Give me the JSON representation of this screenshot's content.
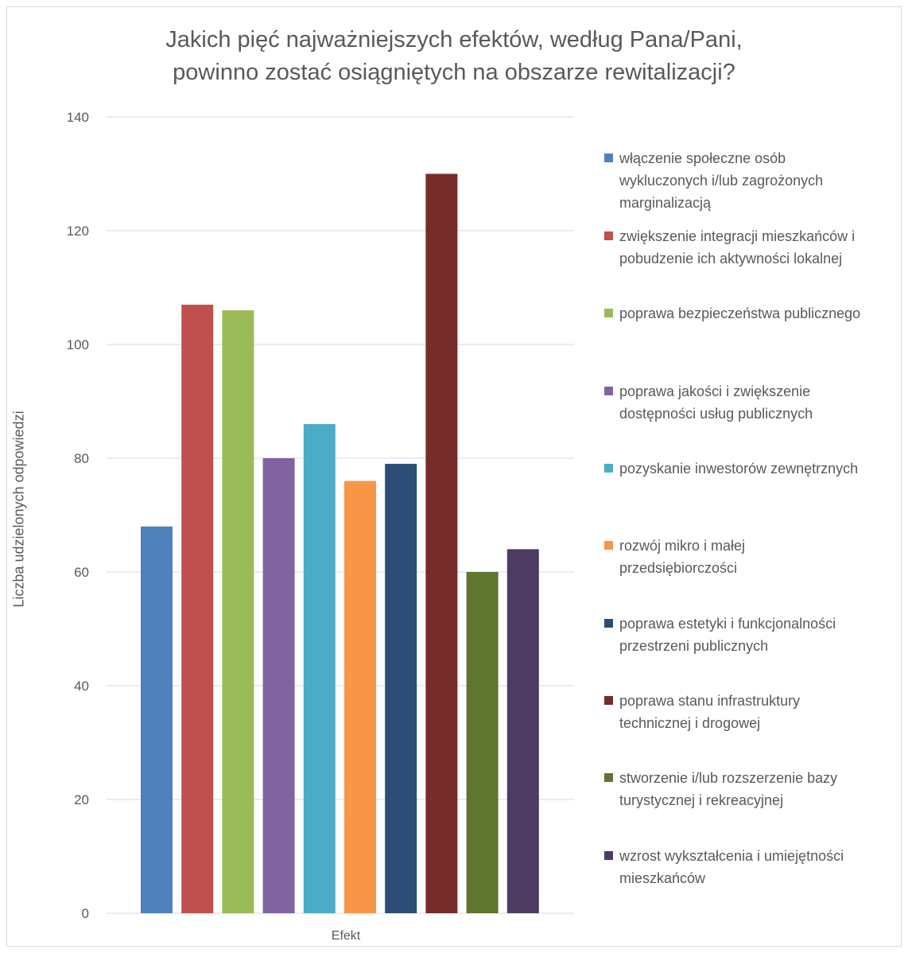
{
  "chart_data": {
    "type": "bar",
    "title_lines": [
      "Jakich pięć najważniejszych efektów, według Pana/Pani,",
      "powinno zostać osiągniętych na obszarze rewitalizacji?"
    ],
    "xlabel": "Efekt",
    "ylabel": "Liczba udzielonych odpowiedzi",
    "ylim": [
      0,
      140
    ],
    "yticks": [
      0,
      20,
      40,
      60,
      80,
      100,
      120,
      140
    ],
    "grid": true,
    "legend_position": "right",
    "series": [
      {
        "name": "włączenie społeczne osób wykluczonych i/lub zagrożonych marginalizacją",
        "value": 68,
        "color": "#4f81bd"
      },
      {
        "name": "zwiększenie integracji mieszkańców i pobudzenie ich aktywności lokalnej",
        "value": 107,
        "color": "#c0504d"
      },
      {
        "name": "poprawa bezpieczeństwa publicznego",
        "value": 106,
        "color": "#9bbb59"
      },
      {
        "name": "poprawa jakości i zwiększenie dostępności usług publicznych",
        "value": 80,
        "color": "#8064a2"
      },
      {
        "name": "pozyskanie inwestorów zewnętrznych",
        "value": 86,
        "color": "#4bacc6"
      },
      {
        "name": "rozwój mikro i małej przedsiębiorczości",
        "value": 76,
        "color": "#f79646"
      },
      {
        "name": "poprawa estetyki i funkcjonalności przestrzeni publicznych",
        "value": 79,
        "color": "#2c4d75"
      },
      {
        "name": "poprawa stanu infrastruktury technicznej i drogowej",
        "value": 130,
        "color": "#772c2a"
      },
      {
        "name": "stworzenie i/lub rozszerzenie bazy turystycznej i rekreacyjnej",
        "value": 60,
        "color": "#5f7530"
      },
      {
        "name": "wzrost wykształcenia i umiejętności mieszkańców",
        "value": 64,
        "color": "#4d3b62"
      }
    ],
    "legend_lines": [
      [
        "włączenie społeczne osób",
        "wykluczonych i/lub zagrożonych",
        "marginalizacją"
      ],
      [
        "zwiększenie integracji mieszkańców i",
        "pobudzenie ich aktywności lokalnej"
      ],
      [
        "poprawa bezpieczeństwa publicznego"
      ],
      [
        "poprawa jakości i zwiększenie",
        "dostępności usług publicznych"
      ],
      [
        "pozyskanie inwestorów zewnętrznych"
      ],
      [
        "rozwój mikro i małej",
        "przedsiębiorczości"
      ],
      [
        "poprawa estetyki i funkcjonalności",
        "przestrzeni publicznych"
      ],
      [
        "poprawa stanu infrastruktury",
        "technicznej i drogowej"
      ],
      [
        "stworzenie i/lub rozszerzenie bazy",
        "turystycznej i rekreacyjnej"
      ],
      [
        "wzrost wykształcenia i umiejętności",
        "mieszkańców"
      ]
    ]
  }
}
